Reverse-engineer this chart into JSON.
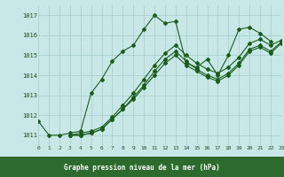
{
  "title": "Graphe pression niveau de la mer (hPa)",
  "bg_color": "#c8e8e8",
  "label_bg": "#2d6a2d",
  "label_color": "#ffffff",
  "grid_color": "#a8d0d0",
  "line_color": "#1a5c1a",
  "xlim": [
    0,
    23
  ],
  "ylim": [
    1010.5,
    1017.5
  ],
  "yticks": [
    1011,
    1012,
    1013,
    1014,
    1015,
    1016,
    1017
  ],
  "xticks": [
    0,
    1,
    2,
    3,
    4,
    5,
    6,
    7,
    8,
    9,
    10,
    11,
    12,
    13,
    14,
    15,
    16,
    17,
    18,
    19,
    20,
    21,
    22,
    23
  ],
  "series": [
    {
      "x": [
        0,
        1,
        2,
        3,
        4,
        5,
        6,
        7,
        8,
        9,
        10,
        11,
        12,
        13,
        14,
        15,
        16,
        17,
        18,
        19,
        20,
        21,
        22
      ],
      "y": [
        1011.7,
        1011.0,
        1011.0,
        1011.1,
        1011.2,
        1013.1,
        1013.8,
        1014.7,
        1015.2,
        1015.5,
        1016.3,
        1017.0,
        1016.6,
        1016.7,
        1014.6,
        1014.4,
        1014.8,
        1014.0,
        1015.0,
        1016.3,
        1016.4,
        1016.1,
        1015.7
      ]
    },
    {
      "x": [
        3,
        4,
        5,
        6,
        7,
        8,
        9,
        10,
        11,
        12,
        13,
        14,
        15,
        16,
        17,
        18,
        19,
        20,
        21,
        22,
        23
      ],
      "y": [
        1011.0,
        1011.1,
        1011.2,
        1011.4,
        1011.9,
        1012.5,
        1013.1,
        1013.8,
        1014.5,
        1015.1,
        1015.5,
        1015.0,
        1014.6,
        1014.3,
        1014.1,
        1014.4,
        1014.9,
        1015.6,
        1015.8,
        1015.5,
        1015.75
      ]
    },
    {
      "x": [
        3,
        4,
        5,
        6,
        7,
        8,
        9,
        10,
        11,
        12,
        13,
        14,
        15,
        16,
        17,
        18,
        19,
        20,
        21,
        22,
        23
      ],
      "y": [
        1011.0,
        1011.0,
        1011.1,
        1011.3,
        1011.8,
        1012.3,
        1012.9,
        1013.5,
        1014.2,
        1014.8,
        1015.2,
        1014.7,
        1014.3,
        1014.0,
        1013.8,
        1014.1,
        1014.6,
        1015.3,
        1015.5,
        1015.2,
        1015.65
      ]
    },
    {
      "x": [
        3,
        4,
        5,
        6,
        7,
        8,
        9,
        10,
        11,
        12,
        13,
        14,
        15,
        16,
        17,
        18,
        19,
        20,
        21,
        22,
        23
      ],
      "y": [
        1011.0,
        1011.0,
        1011.1,
        1011.3,
        1011.8,
        1012.3,
        1012.8,
        1013.4,
        1014.0,
        1014.6,
        1015.0,
        1014.5,
        1014.2,
        1013.9,
        1013.7,
        1014.0,
        1014.5,
        1015.2,
        1015.4,
        1015.1,
        1015.6
      ]
    }
  ]
}
